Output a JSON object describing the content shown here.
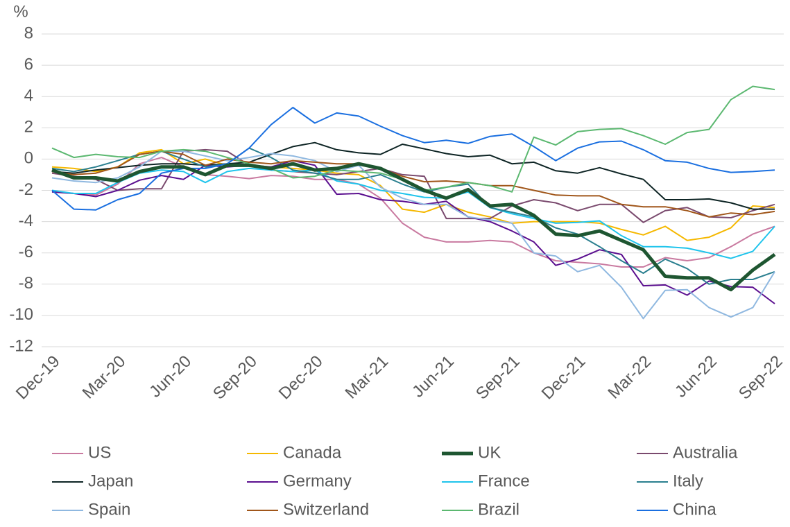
{
  "chart_data": {
    "type": "line",
    "ylabel": "%",
    "categories": [
      "Dec-19",
      null,
      null,
      "Mar-20",
      null,
      null,
      "Jun-20",
      null,
      null,
      "Sep-20",
      null,
      null,
      "Dec-20",
      null,
      null,
      "Mar-21",
      null,
      null,
      "Jun-21",
      null,
      null,
      "Sep-21",
      null,
      null,
      "Dec-21",
      null,
      null,
      "Mar-22",
      null,
      null,
      "Jun-22",
      null,
      null,
      "Sep-22"
    ],
    "ylim": [
      -12,
      8
    ],
    "yticks": [
      -12,
      -10,
      -8,
      -6,
      -4,
      -2,
      0,
      2,
      4,
      6,
      8
    ],
    "grid": true,
    "series": [
      {
        "name": "US",
        "color": "#c97aa0",
        "values": [
          -2.1,
          -2.2,
          -2.3,
          -1.6,
          -0.3,
          0.1,
          -0.5,
          -1.0,
          -1.1,
          -1.25,
          -1.05,
          -1.1,
          -1.3,
          -1.3,
          -1.6,
          -2.5,
          -4.1,
          -5.0,
          -5.3,
          -5.3,
          -5.2,
          -5.3,
          -6.0,
          -6.5,
          -6.6,
          -6.7,
          -6.9,
          -6.9,
          -6.3,
          -6.5,
          -6.3,
          -5.6,
          -4.8,
          -4.3
        ]
      },
      {
        "name": "Canada",
        "color": "#f5b800",
        "values": [
          -0.5,
          -0.6,
          -0.8,
          -0.5,
          0.4,
          0.6,
          -0.3,
          0.0,
          -0.4,
          -0.4,
          -0.5,
          -0.6,
          -0.7,
          -0.9,
          -1.0,
          -1.7,
          -3.2,
          -3.4,
          -2.9,
          -3.4,
          -3.7,
          -4.1,
          -4.0,
          -4.0,
          -4.0,
          -4.1,
          -4.5,
          -4.85,
          -4.3,
          -5.2,
          -5.0,
          -4.4,
          -3.0,
          -3.1
        ]
      },
      {
        "name": "UK",
        "color": "#1e5631",
        "width": 5,
        "values": [
          -0.7,
          -1.2,
          -1.2,
          -1.4,
          -0.8,
          -0.5,
          -0.5,
          -1.0,
          -0.4,
          -0.4,
          -0.6,
          -0.3,
          -0.7,
          -0.6,
          -0.3,
          -0.6,
          -1.3,
          -2.0,
          -2.5,
          -1.95,
          -3.0,
          -2.9,
          -3.6,
          -4.8,
          -4.9,
          -4.6,
          -5.2,
          -5.8,
          -7.5,
          -7.6,
          -7.6,
          -8.35,
          -7.1,
          -6.1
        ]
      },
      {
        "name": "Australia",
        "color": "#7a4a6e",
        "values": [
          -0.9,
          -1.1,
          -1.3,
          -2.0,
          -1.9,
          -1.9,
          0.5,
          0.6,
          0.5,
          -0.4,
          -0.7,
          -0.8,
          -0.9,
          -1.0,
          -0.8,
          -0.6,
          -1.0,
          -1.1,
          -3.8,
          -3.8,
          -3.8,
          -3.0,
          -2.6,
          -2.8,
          -3.3,
          -2.9,
          -2.9,
          -4.05,
          -3.3,
          -3.1,
          -3.7,
          -3.75,
          -3.3,
          -2.9
        ]
      },
      {
        "name": "Japan",
        "color": "#0d2424",
        "values": [
          -0.8,
          -0.9,
          -0.7,
          -0.55,
          -0.4,
          -0.3,
          -0.3,
          -0.4,
          -0.3,
          -0.2,
          0.3,
          0.8,
          1.05,
          0.6,
          0.4,
          0.3,
          0.95,
          0.65,
          0.35,
          0.15,
          0.25,
          -0.3,
          -0.2,
          -0.75,
          -0.9,
          -0.55,
          -0.95,
          -1.3,
          -2.6,
          -2.6,
          -2.55,
          -2.8,
          -3.2,
          -3.2
        ]
      },
      {
        "name": "Germany",
        "color": "#5b0f8f",
        "values": [
          -2.1,
          -2.2,
          -2.4,
          -2.0,
          -1.35,
          -1.05,
          -1.3,
          -0.4,
          -0.5,
          -0.4,
          -0.5,
          -0.1,
          -0.4,
          -2.25,
          -2.2,
          -2.6,
          -2.7,
          -2.9,
          -2.7,
          -3.7,
          -4.0,
          -4.6,
          -5.3,
          -6.8,
          -6.4,
          -5.8,
          -6.1,
          -8.1,
          -8.05,
          -8.7,
          -7.8,
          -8.15,
          -8.2,
          -9.25
        ]
      },
      {
        "name": "France",
        "color": "#1fc4ec",
        "values": [
          -2.0,
          -2.2,
          -2.2,
          -1.5,
          -0.9,
          -0.7,
          -0.8,
          -1.5,
          -0.8,
          -0.6,
          -0.7,
          -0.8,
          -0.7,
          -1.4,
          -1.6,
          -2.0,
          -2.2,
          -2.45,
          -2.5,
          -2.1,
          -3.1,
          -3.5,
          -3.8,
          -4.1,
          -4.05,
          -3.95,
          -4.9,
          -5.6,
          -5.6,
          -5.7,
          -6.0,
          -6.35,
          -5.9,
          -4.3
        ]
      },
      {
        "name": "Italy",
        "color": "#2a7f8f",
        "values": [
          -0.6,
          -0.8,
          -0.5,
          -0.1,
          0.3,
          0.5,
          0.0,
          -0.5,
          -0.3,
          0.7,
          0.1,
          -0.7,
          -0.9,
          -1.3,
          -1.3,
          -1.0,
          -1.6,
          -2.1,
          -1.8,
          -1.6,
          -3.1,
          -3.4,
          -3.7,
          -4.4,
          -4.8,
          -5.6,
          -6.5,
          -7.3,
          -6.4,
          -7.0,
          -8.0,
          -7.7,
          -7.7,
          -7.2
        ]
      },
      {
        "name": "Spain",
        "color": "#8fb8e0",
        "values": [
          -1.2,
          -1.4,
          -1.5,
          -1.2,
          -0.5,
          0.5,
          0.5,
          0.2,
          -0.1,
          0.1,
          0.35,
          0.2,
          -0.1,
          -0.8,
          -0.4,
          -1.8,
          -2.5,
          -2.9,
          -2.9,
          -3.7,
          -3.9,
          -4.1,
          -6.0,
          -6.2,
          -7.2,
          -6.8,
          -8.2,
          -10.2,
          -8.4,
          -8.35,
          -9.5,
          -10.1,
          -9.5,
          -7.2
        ]
      },
      {
        "name": "Switzerland",
        "color": "#a0561a",
        "values": [
          -0.8,
          -1.0,
          -0.9,
          -0.5,
          0.3,
          0.5,
          0.3,
          -0.4,
          0.0,
          -0.2,
          -0.3,
          -0.1,
          -0.2,
          -0.3,
          -0.3,
          -0.6,
          -1.1,
          -1.45,
          -1.4,
          -1.5,
          -1.7,
          -1.7,
          -2.0,
          -2.3,
          -2.35,
          -2.35,
          -2.9,
          -3.05,
          -3.05,
          -3.3,
          -3.7,
          -3.45,
          -3.55,
          -3.35
        ]
      },
      {
        "name": "Brazil",
        "color": "#5bb870",
        "values": [
          0.7,
          0.1,
          0.3,
          0.15,
          0.1,
          0.5,
          0.6,
          0.5,
          0.1,
          -0.3,
          -0.6,
          -1.2,
          -1.1,
          -0.7,
          -0.8,
          -0.9,
          -1.3,
          -2.0,
          -1.8,
          -1.5,
          -1.7,
          -2.1,
          1.4,
          0.9,
          1.75,
          1.9,
          1.95,
          1.5,
          0.95,
          1.7,
          1.9,
          3.8,
          4.65,
          4.45
        ]
      },
      {
        "name": "China",
        "color": "#1a6fe0",
        "values": [
          -2.0,
          -3.2,
          -3.25,
          -2.6,
          -2.2,
          -0.9,
          -0.6,
          -0.6,
          -0.3,
          0.7,
          2.2,
          3.3,
          2.3,
          2.95,
          2.75,
          2.1,
          1.5,
          1.05,
          1.2,
          1.0,
          1.45,
          1.6,
          0.8,
          -0.1,
          0.7,
          1.1,
          1.15,
          0.6,
          -0.1,
          -0.2,
          -0.6,
          -0.85,
          -0.8,
          -0.7
        ]
      }
    ]
  }
}
